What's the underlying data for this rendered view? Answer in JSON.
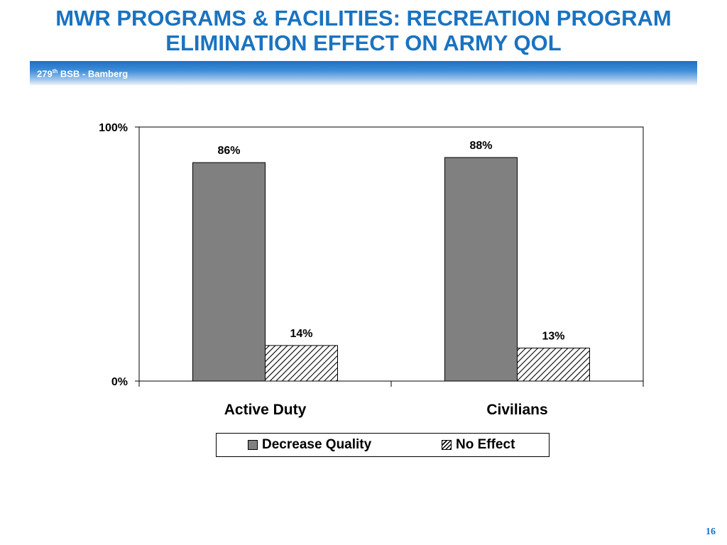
{
  "slide": {
    "title_line1": "MWR PROGRAMS & FACILITIES: RECREATION PROGRAM",
    "title_line2": "ELIMINATION EFFECT ON ARMY QOL",
    "banner_number": "279",
    "banner_suffix": "th",
    "banner_rest": " BSB - Bamberg",
    "page_number": "16"
  },
  "colors": {
    "title": "#1a73c0",
    "decrease_quality": "#808080",
    "no_effect_pattern": "black-white diagonal hatch"
  },
  "chart_data": {
    "type": "bar",
    "categories": [
      "Active Duty",
      "Civilians"
    ],
    "series": [
      {
        "name": "Decrease Quality",
        "values": [
          86,
          88
        ],
        "labels": [
          "86%",
          "88%"
        ]
      },
      {
        "name": "No Effect",
        "values": [
          14,
          13
        ],
        "labels": [
          "14%",
          "13%"
        ]
      }
    ],
    "ylim": [
      0,
      100
    ],
    "yticks": [
      "0%",
      "100%"
    ],
    "grid": false,
    "legend_position": "bottom"
  }
}
